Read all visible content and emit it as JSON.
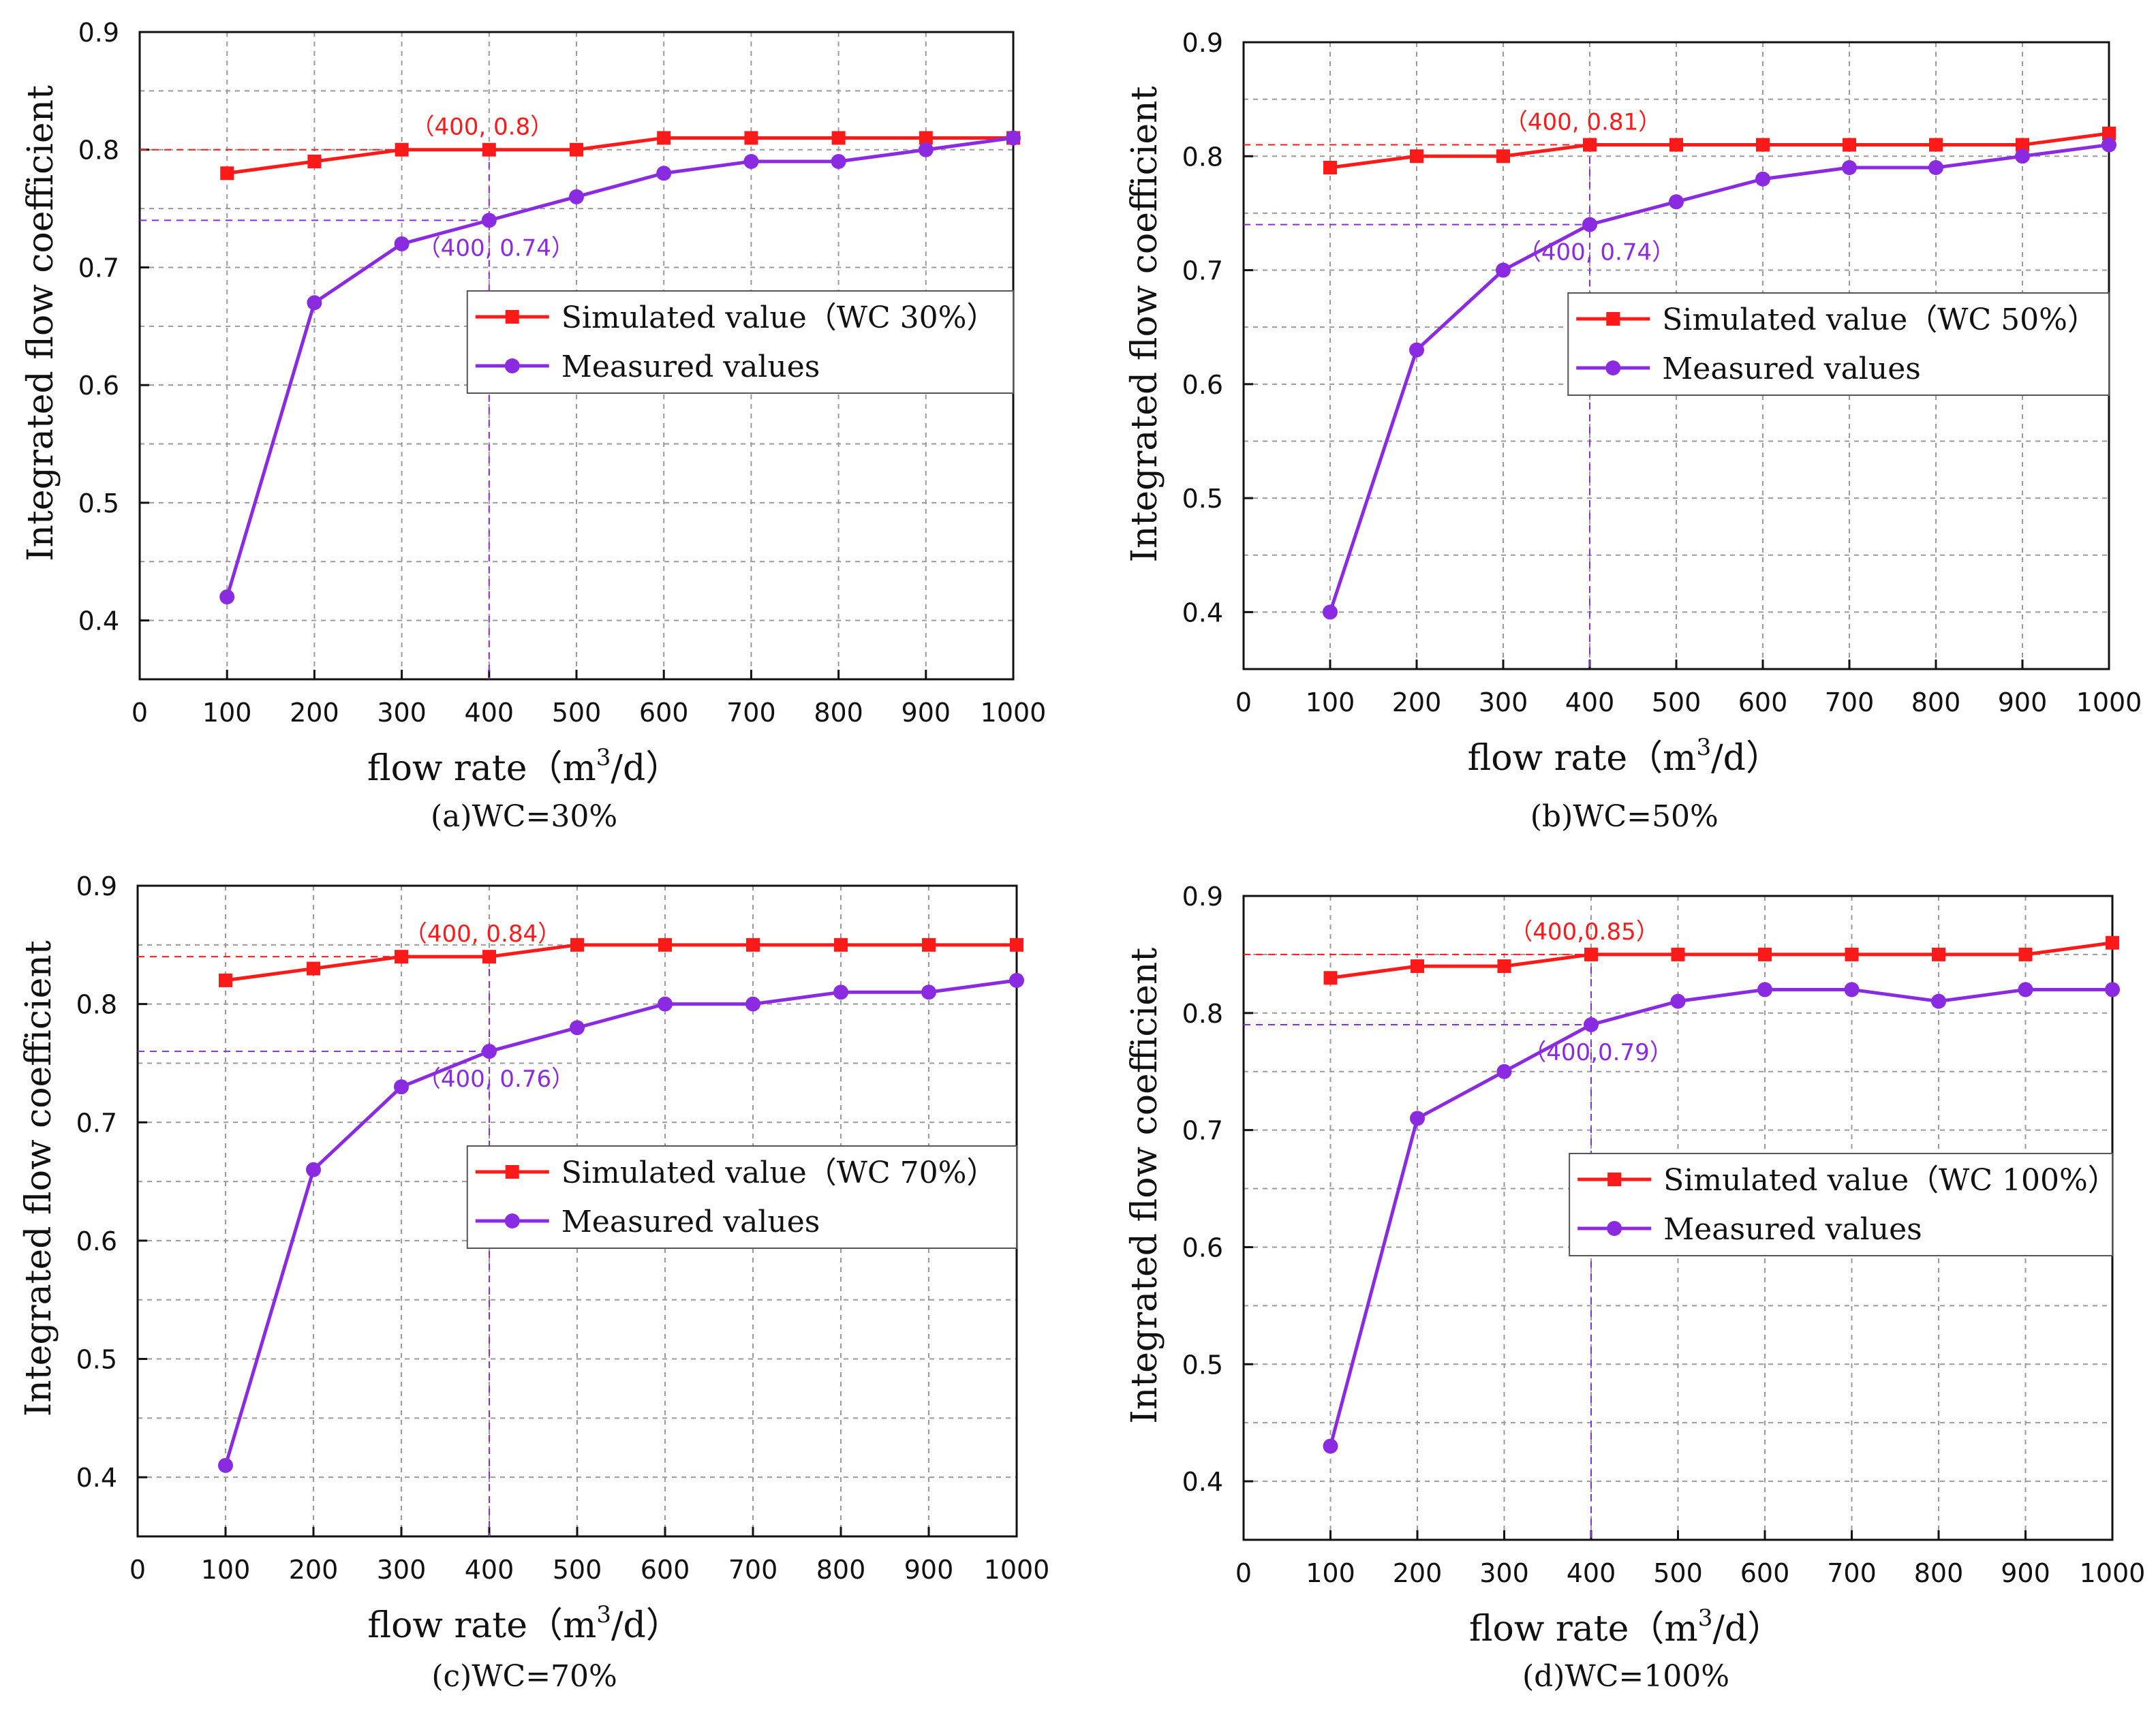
{
  "colors": {
    "simulated": "#ff1a1a",
    "measured": "#8a2be2",
    "axis": "#111111",
    "grid": "#9a9a9a"
  },
  "chart_data": [
    {
      "type": "line",
      "caption": "(a)WC=30%",
      "xlabel": "flow rate（m",
      "xlabel_sup": "3",
      "xlabel_tail": "/d）",
      "ylabel": "Integrated flow coefficient",
      "xlim": [
        0,
        1000
      ],
      "ylim": [
        0.35,
        0.9
      ],
      "xticks": [
        "0",
        "100",
        "200",
        "300",
        "400",
        "500",
        "600",
        "700",
        "800",
        "900",
        "1000"
      ],
      "yticks": [
        "0.4",
        "0.5",
        "0.6",
        "0.7",
        "0.8",
        "0.9"
      ],
      "grid": true,
      "legend_position": "center-right",
      "x": [
        100,
        200,
        300,
        400,
        500,
        600,
        700,
        800,
        900,
        1000
      ],
      "series": [
        {
          "name": "Simulated value（WC 30%）",
          "marker": "square",
          "color_key": "simulated",
          "values": [
            0.78,
            0.79,
            0.8,
            0.8,
            0.8,
            0.81,
            0.81,
            0.81,
            0.81,
            0.81
          ]
        },
        {
          "name": "Measured values",
          "marker": "circle",
          "color_key": "measured",
          "values": [
            0.42,
            0.67,
            0.72,
            0.74,
            0.76,
            0.78,
            0.79,
            0.79,
            0.8,
            0.81
          ]
        }
      ],
      "annotations": [
        {
          "text": "（400, 0.8）",
          "series": 0,
          "x": 400,
          "y": 0.8,
          "placement": "above"
        },
        {
          "text": "（400, 0.74）",
          "series": 1,
          "x": 400,
          "y": 0.74,
          "placement": "below"
        }
      ]
    },
    {
      "type": "line",
      "caption": "(b)WC=50%",
      "xlabel": "flow rate（m",
      "xlabel_sup": "3",
      "xlabel_tail": "/d）",
      "ylabel": "Integrated flow coefficient",
      "xlim": [
        0,
        1000
      ],
      "ylim": [
        0.35,
        0.9
      ],
      "xticks": [
        "0",
        "100",
        "200",
        "300",
        "400",
        "500",
        "600",
        "700",
        "800",
        "900",
        "1000"
      ],
      "yticks": [
        "0.4",
        "0.5",
        "0.6",
        "0.7",
        "0.8",
        "0.9"
      ],
      "grid": true,
      "legend_position": "center-right",
      "x": [
        100,
        200,
        300,
        400,
        500,
        600,
        700,
        800,
        900,
        1000
      ],
      "series": [
        {
          "name": "Simulated value（WC 50%）",
          "marker": "square",
          "color_key": "simulated",
          "values": [
            0.79,
            0.8,
            0.8,
            0.81,
            0.81,
            0.81,
            0.81,
            0.81,
            0.81,
            0.82
          ]
        },
        {
          "name": "Measured values",
          "marker": "circle",
          "color_key": "measured",
          "values": [
            0.4,
            0.63,
            0.7,
            0.74,
            0.76,
            0.78,
            0.79,
            0.79,
            0.8,
            0.81
          ]
        }
      ],
      "annotations": [
        {
          "text": "（400, 0.81）",
          "series": 0,
          "x": 400,
          "y": 0.81,
          "placement": "above"
        },
        {
          "text": "（400, 0.74）",
          "series": 1,
          "x": 400,
          "y": 0.74,
          "placement": "below"
        }
      ]
    },
    {
      "type": "line",
      "caption": "(c)WC=70%",
      "xlabel": "flow rate（m",
      "xlabel_sup": "3",
      "xlabel_tail": "/d）",
      "ylabel": "Integrated flow coefficient",
      "xlim": [
        0,
        1000
      ],
      "ylim": [
        0.35,
        0.9
      ],
      "xticks": [
        "0",
        "100",
        "200",
        "300",
        "400",
        "500",
        "600",
        "700",
        "800",
        "900",
        "1000"
      ],
      "yticks": [
        "0.4",
        "0.5",
        "0.6",
        "0.7",
        "0.8",
        "0.9"
      ],
      "grid": true,
      "legend_position": "center-right",
      "x": [
        100,
        200,
        300,
        400,
        500,
        600,
        700,
        800,
        900,
        1000
      ],
      "series": [
        {
          "name": "Simulated value（WC 70%）",
          "marker": "square",
          "color_key": "simulated",
          "values": [
            0.82,
            0.83,
            0.84,
            0.84,
            0.85,
            0.85,
            0.85,
            0.85,
            0.85,
            0.85
          ]
        },
        {
          "name": "Measured values",
          "marker": "circle",
          "color_key": "measured",
          "values": [
            0.41,
            0.66,
            0.73,
            0.76,
            0.78,
            0.8,
            0.8,
            0.81,
            0.81,
            0.82
          ]
        }
      ],
      "annotations": [
        {
          "text": "（400, 0.84）",
          "series": 0,
          "x": 400,
          "y": 0.84,
          "placement": "above"
        },
        {
          "text": "（400, 0.76）",
          "series": 1,
          "x": 400,
          "y": 0.76,
          "placement": "below"
        }
      ]
    },
    {
      "type": "line",
      "caption": "(d)WC=100%",
      "xlabel": "flow rate（m",
      "xlabel_sup": "3",
      "xlabel_tail": "/d）",
      "ylabel": "Integrated flow coefficient",
      "xlim": [
        0,
        1000
      ],
      "ylim": [
        0.35,
        0.9
      ],
      "xticks": [
        "0",
        "100",
        "200",
        "300",
        "400",
        "500",
        "600",
        "700",
        "800",
        "900",
        "1000"
      ],
      "yticks": [
        "0.4",
        "0.5",
        "0.6",
        "0.7",
        "0.8",
        "0.9"
      ],
      "grid": true,
      "legend_position": "center-right",
      "x": [
        100,
        200,
        300,
        400,
        500,
        600,
        700,
        800,
        900,
        1000
      ],
      "series": [
        {
          "name": "Simulated value（WC 100%）",
          "marker": "square",
          "color_key": "simulated",
          "values": [
            0.83,
            0.84,
            0.84,
            0.85,
            0.85,
            0.85,
            0.85,
            0.85,
            0.85,
            0.86
          ]
        },
        {
          "name": "Measured values",
          "marker": "circle",
          "color_key": "measured",
          "values": [
            0.43,
            0.71,
            0.75,
            0.79,
            0.81,
            0.82,
            0.82,
            0.81,
            0.82,
            0.82
          ]
        }
      ],
      "annotations": [
        {
          "text": "（400,0.85）",
          "series": 0,
          "x": 400,
          "y": 0.85,
          "placement": "above"
        },
        {
          "text": "（400,0.79）",
          "series": 1,
          "x": 400,
          "y": 0.79,
          "placement": "below"
        }
      ]
    }
  ]
}
